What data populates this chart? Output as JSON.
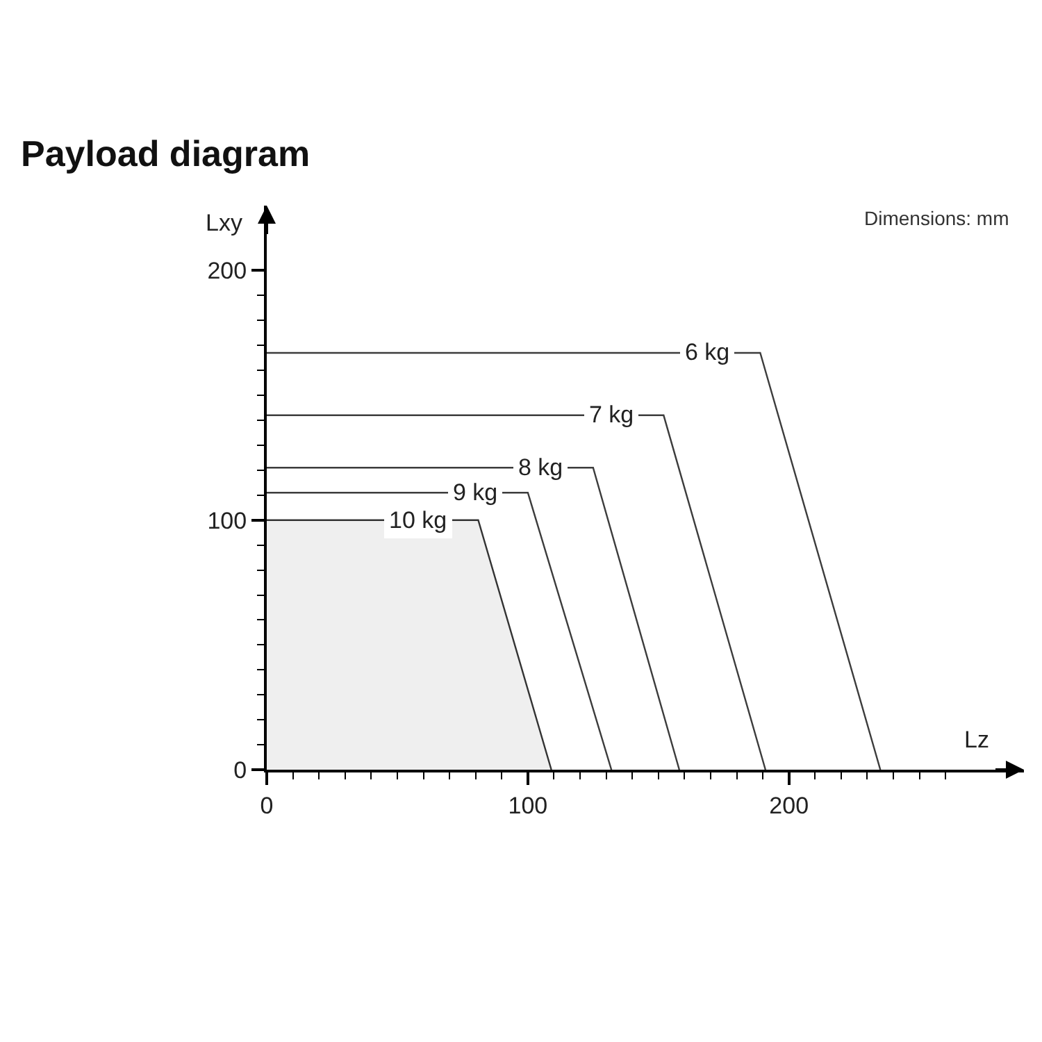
{
  "chart_data": {
    "type": "line",
    "title": "Payload diagram",
    "xlabel": "Lz",
    "ylabel": "Lxy",
    "annotations": [
      "Dimensions: mm"
    ],
    "series": [
      {
        "name": "6 kg",
        "color": "#3c3c3c",
        "x": [
          0,
          189,
          235
        ],
        "values": [
          167,
          167,
          0
        ]
      },
      {
        "name": "7 kg",
        "color": "#3c3c3c",
        "x": [
          0,
          152,
          191
        ],
        "values": [
          142,
          142,
          0
        ]
      },
      {
        "name": "8 kg",
        "color": "#3c3c3c",
        "x": [
          0,
          125,
          158
        ],
        "values": [
          121,
          121,
          0
        ]
      },
      {
        "name": "9 kg",
        "color": "#3c3c3c",
        "x": [
          0,
          100,
          132
        ],
        "values": [
          111,
          111,
          0
        ]
      },
      {
        "name": "10 kg",
        "type": "area",
        "color": "#333333",
        "x": [
          0,
          81,
          109
        ],
        "values": [
          100,
          100,
          0
        ]
      }
    ],
    "xlim": [
      0,
      290
    ],
    "ylim": [
      0,
      226
    ],
    "xticks": [
      0,
      {
        "value": 10,
        "label": null
      },
      {
        "value": 20,
        "label": null
      },
      {
        "value": 30,
        "label": null
      },
      {
        "value": 40,
        "label": null
      },
      {
        "value": 50,
        "label": null
      },
      {
        "value": 60,
        "label": null
      },
      {
        "value": 70,
        "label": null
      },
      {
        "value": 80,
        "label": null
      },
      {
        "value": 90,
        "label": null
      },
      100,
      {
        "value": 110,
        "label": null
      },
      {
        "value": 120,
        "label": null
      },
      {
        "value": 130,
        "label": null
      },
      {
        "value": 140,
        "label": null
      },
      {
        "value": 150,
        "label": null
      },
      {
        "value": 160,
        "label": null
      },
      {
        "value": 170,
        "label": null
      },
      {
        "value": 180,
        "label": null
      },
      {
        "value": 190,
        "label": null
      },
      200,
      {
        "value": 210,
        "label": null
      },
      {
        "value": 220,
        "label": null
      },
      {
        "value": 230,
        "label": null
      },
      {
        "value": 240,
        "label": null
      },
      {
        "value": 250,
        "label": null
      },
      {
        "value": 260,
        "label": null
      }
    ],
    "yticks": [
      0,
      {
        "value": 10,
        "label": null
      },
      {
        "value": 20,
        "label": null
      },
      {
        "value": 30,
        "label": null
      },
      {
        "value": 40,
        "label": null
      },
      {
        "value": 50,
        "label": null
      },
      {
        "value": 60,
        "label": null
      },
      {
        "value": 70,
        "label": null
      },
      {
        "value": 80,
        "label": null
      },
      {
        "value": 90,
        "label": null
      },
      100,
      {
        "value": 110,
        "label": null
      },
      {
        "value": 120,
        "label": null
      },
      {
        "value": 130,
        "label": null
      },
      {
        "value": 140,
        "label": null
      },
      {
        "value": 150,
        "label": null
      },
      {
        "value": 160,
        "label": null
      },
      {
        "value": 170,
        "label": null
      },
      {
        "value": 180,
        "label": null
      },
      {
        "value": 190,
        "label": null
      },
      200
    ],
    "grid": false
  }
}
